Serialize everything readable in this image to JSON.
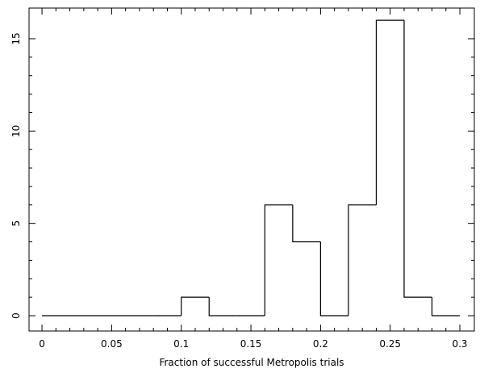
{
  "chart_data": {
    "type": "histogram",
    "xlabel": "Fraction of successful Metropolis trials",
    "bins": [
      0,
      0.02,
      0.04,
      0.06,
      0.08,
      0.1,
      0.12,
      0.14,
      0.16,
      0.18,
      0.2,
      0.22,
      0.24,
      0.26,
      0.28,
      0.3
    ],
    "counts": [
      0,
      0,
      0,
      0,
      0,
      1,
      0,
      0,
      6,
      4,
      0,
      6,
      16,
      1,
      0
    ],
    "color": "#000000",
    "xlim": [
      -0.0093,
      0.3104
    ],
    "xticks": [
      0,
      0.05,
      0.1,
      0.15,
      0.2,
      0.25,
      0.3
    ],
    "ylim": [
      -0.83,
      16.66
    ],
    "yticks": [
      0,
      5,
      10,
      15
    ]
  }
}
